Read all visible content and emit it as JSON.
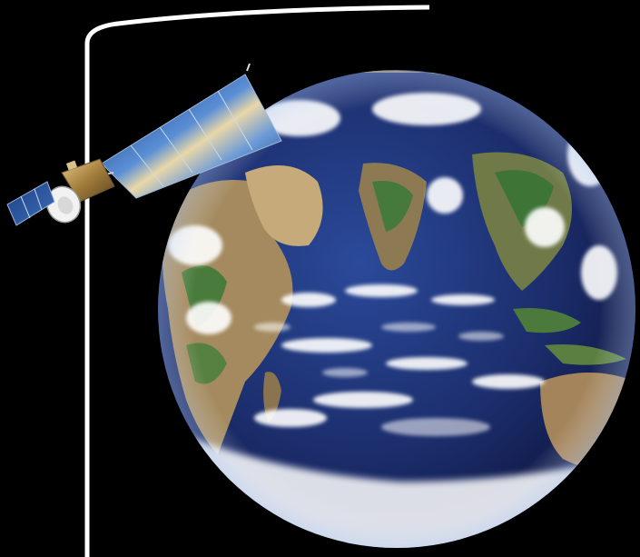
{
  "scene": {
    "background": "#000000",
    "subject": "satellite-orbiting-earth",
    "elements": {
      "orbit_line_color": "#ffffff",
      "ocean_color": "#1e2f6e",
      "land_color": "#a08a64",
      "vegetation_color": "#3d7a3a",
      "cloud_color": "#ffffff",
      "solar_panel_color": "#3e6fb0",
      "satellite_body_color": "#c9a35a"
    }
  }
}
